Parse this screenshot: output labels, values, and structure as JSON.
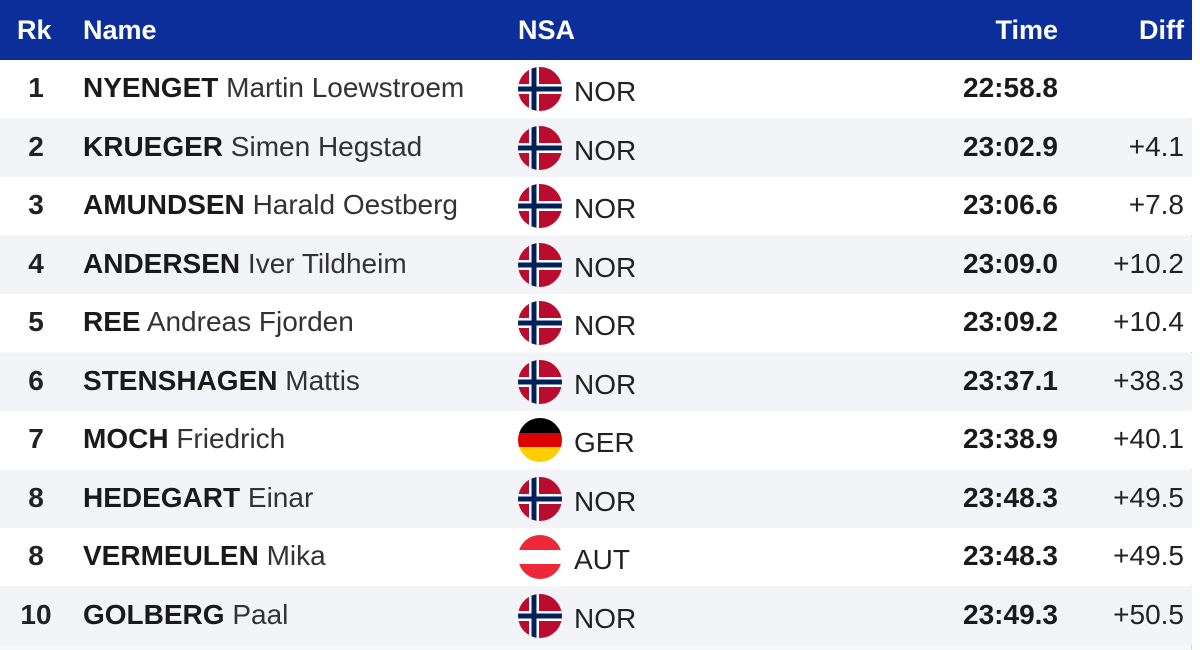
{
  "header": {
    "rank": "Rk",
    "name": "Name",
    "nsa": "NSA",
    "time": "Time",
    "diff": "Diff"
  },
  "rows": [
    {
      "rank": "1",
      "surname": "NYENGET",
      "given": "Martin Loewstroem",
      "nsa": "NOR",
      "flag": "norway-flag-icon",
      "time": "22:58.8",
      "diff": ""
    },
    {
      "rank": "2",
      "surname": "KRUEGER",
      "given": "Simen Hegstad",
      "nsa": "NOR",
      "flag": "norway-flag-icon",
      "time": "23:02.9",
      "diff": "+4.1"
    },
    {
      "rank": "3",
      "surname": "AMUNDSEN",
      "given": "Harald Oestberg",
      "nsa": "NOR",
      "flag": "norway-flag-icon",
      "time": "23:06.6",
      "diff": "+7.8"
    },
    {
      "rank": "4",
      "surname": "ANDERSEN",
      "given": "Iver Tildheim",
      "nsa": "NOR",
      "flag": "norway-flag-icon",
      "time": "23:09.0",
      "diff": "+10.2"
    },
    {
      "rank": "5",
      "surname": "REE",
      "given": "Andreas Fjorden",
      "nsa": "NOR",
      "flag": "norway-flag-icon",
      "time": "23:09.2",
      "diff": "+10.4"
    },
    {
      "rank": "6",
      "surname": "STENSHAGEN",
      "given": "Mattis",
      "nsa": "NOR",
      "flag": "norway-flag-icon",
      "time": "23:37.1",
      "diff": "+38.3"
    },
    {
      "rank": "7",
      "surname": "MOCH",
      "given": "Friedrich",
      "nsa": "GER",
      "flag": "germany-flag-icon",
      "time": "23:38.9",
      "diff": "+40.1"
    },
    {
      "rank": "8",
      "surname": "HEDEGART",
      "given": "Einar",
      "nsa": "NOR",
      "flag": "norway-flag-icon",
      "time": "23:48.3",
      "diff": "+49.5"
    },
    {
      "rank": "8",
      "surname": "VERMEULEN",
      "given": "Mika",
      "nsa": "AUT",
      "flag": "austria-flag-icon",
      "time": "23:48.3",
      "diff": "+49.5"
    },
    {
      "rank": "10",
      "surname": "GOLBERG",
      "given": "Paal",
      "nsa": "NOR",
      "flag": "norway-flag-icon",
      "time": "23:49.3",
      "diff": "+50.5"
    }
  ],
  "colors": {
    "header_bg": "#0b2e9a",
    "header_text": "#ffffff",
    "norway_red": "#ba0c2f",
    "norway_blue": "#00205b",
    "germany_black": "#000000",
    "germany_red": "#dd0000",
    "germany_gold": "#ffce00",
    "austria_red": "#ed2939"
  }
}
